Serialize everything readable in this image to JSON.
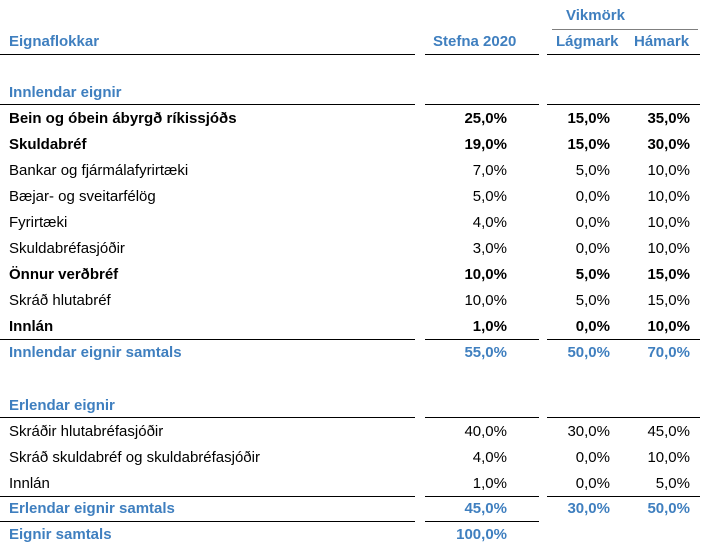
{
  "header": {
    "group_label": "Vikmörk",
    "col_category": "Eignaflokkar",
    "col_policy": "Stefna 2020",
    "col_min": "Lágmark",
    "col_max": "Hámark"
  },
  "domestic": {
    "title": "Innlendar eignir",
    "rows": [
      {
        "label": "Bein og óbein ábyrgð ríkissjóðs",
        "policy": "25,0%",
        "min": "15,0%",
        "max": "35,0%",
        "bold": true
      },
      {
        "label": "Skuldabréf",
        "policy": "19,0%",
        "min": "15,0%",
        "max": "30,0%",
        "bold": true
      },
      {
        "label": "Bankar og fjármálafyrirtæki",
        "policy": "7,0%",
        "min": "5,0%",
        "max": "10,0%",
        "bold": false
      },
      {
        "label": "Bæjar- og sveitarfélög",
        "policy": "5,0%",
        "min": "0,0%",
        "max": "10,0%",
        "bold": false
      },
      {
        "label": "Fyrirtæki",
        "policy": "4,0%",
        "min": "0,0%",
        "max": "10,0%",
        "bold": false
      },
      {
        "label": "Skuldabréfasjóðir",
        "policy": "3,0%",
        "min": "0,0%",
        "max": "10,0%",
        "bold": false
      },
      {
        "label": "Önnur verðbréf",
        "policy": "10,0%",
        "min": "5,0%",
        "max": "15,0%",
        "bold": true
      },
      {
        "label": "Skráð hlutabréf",
        "policy": "10,0%",
        "min": "5,0%",
        "max": "15,0%",
        "bold": false
      },
      {
        "label": "Innlán",
        "policy": "1,0%",
        "min": "0,0%",
        "max": "10,0%",
        "bold": true
      }
    ],
    "total": {
      "label": "Innlendar eignir samtals",
      "policy": "55,0%",
      "min": "50,0%",
      "max": "70,0%"
    }
  },
  "foreign": {
    "title": "Erlendar eignir",
    "rows": [
      {
        "label": "Skráðir hlutabréfasjóðir",
        "policy": "40,0%",
        "min": "30,0%",
        "max": "45,0%",
        "bold": false
      },
      {
        "label": "Skráð skuldabréf og skuldabréfasjóðir",
        "policy": "4,0%",
        "min": "0,0%",
        "max": "10,0%",
        "bold": false
      },
      {
        "label": "Innlán",
        "policy": "1,0%",
        "min": "0,0%",
        "max": "5,0%",
        "bold": false
      }
    ],
    "total": {
      "label": "Erlendar eignir samtals",
      "policy": "45,0%",
      "min": "30,0%",
      "max": "50,0%"
    }
  },
  "grand_total": {
    "label": "Eignir samtals",
    "policy": "100,0%"
  }
}
